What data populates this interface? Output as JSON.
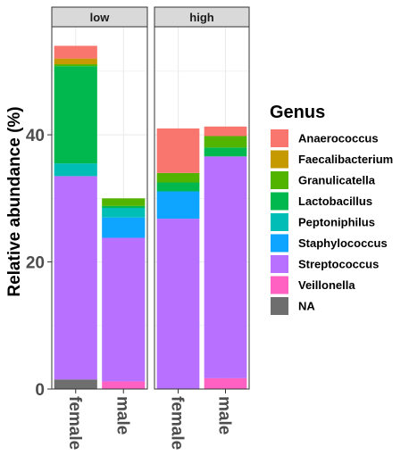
{
  "chart_data": {
    "type": "bar",
    "stacked": true,
    "ylabel": "Relative abundance (%)",
    "ylim": [
      0,
      57
    ],
    "yticks": [
      0,
      20,
      40
    ],
    "grid": true,
    "legend": {
      "title": "Genus",
      "position": "right"
    },
    "facets": [
      {
        "label": "low",
        "categories": [
          "female",
          "male"
        ],
        "series": [
          {
            "name": "NA",
            "values": [
              1.5,
              0
            ]
          },
          {
            "name": "Veillonella",
            "values": [
              0,
              1.2
            ]
          },
          {
            "name": "Streptococcus",
            "values": [
              32,
              22.6
            ]
          },
          {
            "name": "Staphylococcus",
            "values": [
              0,
              3.2
            ]
          },
          {
            "name": "Peptoniphilus",
            "values": [
              2,
              1.5
            ]
          },
          {
            "name": "Lactobacillus",
            "values": [
              15.3,
              0.3
            ]
          },
          {
            "name": "Granulicatella",
            "values": [
              0.3,
              1.2
            ]
          },
          {
            "name": "Faecalibacterium",
            "values": [
              0.9,
              0
            ]
          },
          {
            "name": "Anaerococcus",
            "values": [
              2,
              0
            ]
          }
        ]
      },
      {
        "label": "high",
        "categories": [
          "female",
          "male"
        ],
        "series": [
          {
            "name": "NA",
            "values": [
              0,
              0
            ]
          },
          {
            "name": "Veillonella",
            "values": [
              0,
              1.7
            ]
          },
          {
            "name": "Streptococcus",
            "values": [
              26.8,
              34.9
            ]
          },
          {
            "name": "Staphylococcus",
            "values": [
              4.3,
              0
            ]
          },
          {
            "name": "Peptoniphilus",
            "values": [
              0,
              0
            ]
          },
          {
            "name": "Lactobacillus",
            "values": [
              1.4,
              1.4
            ]
          },
          {
            "name": "Granulicatella",
            "values": [
              1.5,
              1.8
            ]
          },
          {
            "name": "Faecalibacterium",
            "values": [
              0,
              0
            ]
          },
          {
            "name": "Anaerococcus",
            "values": [
              7,
              1.5
            ]
          }
        ]
      }
    ],
    "legend_order": [
      "Anaerococcus",
      "Faecalibacterium",
      "Granulicatella",
      "Lactobacillus",
      "Peptoniphilus",
      "Staphylococcus",
      "Streptococcus",
      "Veillonella",
      "NA"
    ],
    "colors": {
      "Anaerococcus": "#F8766D",
      "Faecalibacterium": "#C49A00",
      "Granulicatella": "#53B400",
      "Lactobacillus": "#00B84E",
      "Peptoniphilus": "#00BDB5",
      "Staphylococcus": "#0DA5FF",
      "Streptococcus": "#B770FF",
      "Veillonella": "#FF61C3",
      "NA": "#6E6E6E"
    }
  }
}
